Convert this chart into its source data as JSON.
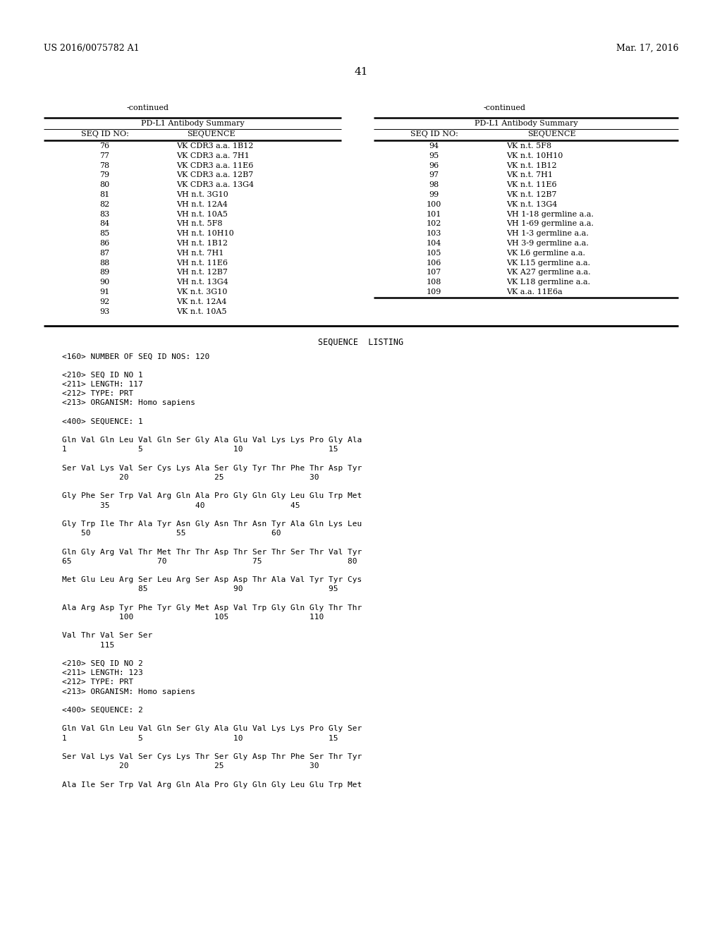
{
  "header_left": "US 2016/0075782 A1",
  "header_right": "Mar. 17, 2016",
  "page_number": "41",
  "background_color": "#ffffff",
  "text_color": "#000000",
  "table_title": "PD-L1 Antibody Summary",
  "left_table_data": [
    [
      "76",
      "VK CDR3 a.a. 1B12"
    ],
    [
      "77",
      "VK CDR3 a.a. 7H1"
    ],
    [
      "78",
      "VK CDR3 a.a. 11E6"
    ],
    [
      "79",
      "VK CDR3 a.a. 12B7"
    ],
    [
      "80",
      "VK CDR3 a.a. 13G4"
    ],
    [
      "81",
      "VH n.t. 3G10"
    ],
    [
      "82",
      "VH n.t. 12A4"
    ],
    [
      "83",
      "VH n.t. 10A5"
    ],
    [
      "84",
      "VH n.t. 5F8"
    ],
    [
      "85",
      "VH n.t. 10H10"
    ],
    [
      "86",
      "VH n.t. 1B12"
    ],
    [
      "87",
      "VH n.t. 7H1"
    ],
    [
      "88",
      "VH n.t. 11E6"
    ],
    [
      "89",
      "VH n.t. 12B7"
    ],
    [
      "90",
      "VH n.t. 13G4"
    ],
    [
      "91",
      "VK n.t. 3G10"
    ],
    [
      "92",
      "VK n.t. 12A4"
    ],
    [
      "93",
      "VK n.t. 10A5"
    ]
  ],
  "right_table_data": [
    [
      "94",
      "VK n.t. 5F8"
    ],
    [
      "95",
      "VK n.t. 10H10"
    ],
    [
      "96",
      "VK n.t. 1B12"
    ],
    [
      "97",
      "VK n.t. 7H1"
    ],
    [
      "98",
      "VK n.t. 11E6"
    ],
    [
      "99",
      "VK n.t. 12B7"
    ],
    [
      "100",
      "VK n.t. 13G4"
    ],
    [
      "101",
      "VH 1-18 germline a.a."
    ],
    [
      "102",
      "VH 1-69 germline a.a."
    ],
    [
      "103",
      "VH 1-3 germline a.a."
    ],
    [
      "104",
      "VH 3-9 germline a.a."
    ],
    [
      "105",
      "VK L6 germline a.a."
    ],
    [
      "106",
      "VK L15 germline a.a."
    ],
    [
      "107",
      "VK A27 germline a.a."
    ],
    [
      "108",
      "VK L18 germline a.a."
    ],
    [
      "109",
      "VK a.a. 11E6a"
    ]
  ],
  "seq_listing_title": "SEQUENCE  LISTING",
  "seq_listing_lines": [
    "<160> NUMBER OF SEQ ID NOS: 120",
    "",
    "<210> SEQ ID NO 1",
    "<211> LENGTH: 117",
    "<212> TYPE: PRT",
    "<213> ORGANISM: Homo sapiens",
    "",
    "<400> SEQUENCE: 1",
    "",
    "Gln Val Gln Leu Val Gln Ser Gly Ala Glu Val Lys Lys Pro Gly Ala",
    "1               5                   10                  15",
    "",
    "Ser Val Lys Val Ser Cys Lys Ala Ser Gly Tyr Thr Phe Thr Asp Tyr",
    "            20                  25                  30",
    "",
    "Gly Phe Ser Trp Val Arg Gln Ala Pro Gly Gln Gly Leu Glu Trp Met",
    "        35                  40                  45",
    "",
    "Gly Trp Ile Thr Ala Tyr Asn Gly Asn Thr Asn Tyr Ala Gln Lys Leu",
    "    50                  55                  60",
    "",
    "Gln Gly Arg Val Thr Met Thr Thr Asp Thr Ser Thr Ser Thr Val Tyr",
    "65                  70                  75                  80",
    "",
    "Met Glu Leu Arg Ser Leu Arg Ser Asp Asp Thr Ala Val Tyr Tyr Cys",
    "                85                  90                  95",
    "",
    "Ala Arg Asp Tyr Phe Tyr Gly Met Asp Val Trp Gly Gln Gly Thr Thr",
    "            100                 105                 110",
    "",
    "Val Thr Val Ser Ser",
    "        115",
    "",
    "<210> SEQ ID NO 2",
    "<211> LENGTH: 123",
    "<212> TYPE: PRT",
    "<213> ORGANISM: Homo sapiens",
    "",
    "<400> SEQUENCE: 2",
    "",
    "Gln Val Gln Leu Val Gln Ser Gly Ala Glu Val Lys Lys Pro Gly Ser",
    "1               5                   10                  15",
    "",
    "Ser Val Lys Val Ser Cys Lys Thr Ser Gly Asp Thr Phe Ser Thr Tyr",
    "            20                  25                  30",
    "",
    "Ala Ile Ser Trp Val Arg Gln Ala Pro Gly Gln Gly Leu Glu Trp Met"
  ]
}
